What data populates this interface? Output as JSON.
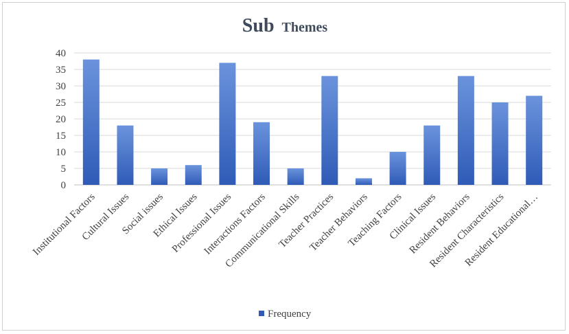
{
  "chart_data": {
    "type": "bar",
    "title_parts": [
      "Sub",
      "Themes"
    ],
    "categories": [
      "Institutional Factors",
      "Cultural Issues",
      "Social issues",
      "Ethical Issues",
      "Professional Issues",
      "Interactions Factors",
      "Communicational Skills",
      "Teacher Practices",
      "Teacher Behaviors",
      "Teaching Factors",
      "Clinical Issues",
      "Resident Behaviors",
      "Resident Characteristics",
      "Resident Educational…"
    ],
    "series": [
      {
        "name": "Frequency",
        "values": [
          38,
          18,
          5,
          6,
          37,
          19,
          5,
          33,
          2,
          10,
          18,
          33,
          25,
          27
        ]
      }
    ],
    "ylim": [
      0,
      40
    ],
    "yticks": [
      0,
      5,
      10,
      15,
      20,
      25,
      30,
      35,
      40
    ],
    "grid": true,
    "legend_position": "bottom",
    "colors": {
      "bar_top": "#6b93dc",
      "bar_bottom": "#2f5bb7",
      "grid": "#d9d9d9",
      "axis": "#bfbfbf"
    }
  }
}
